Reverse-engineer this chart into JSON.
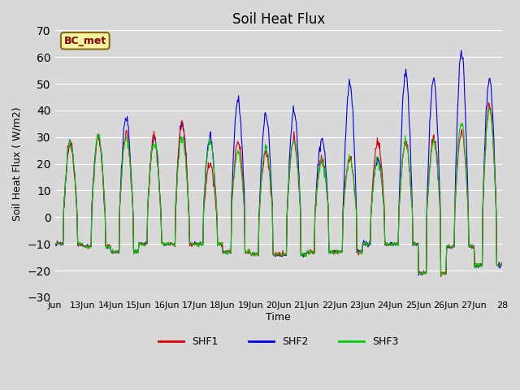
{
  "title": "Soil Heat Flux",
  "ylabel": "Soil Heat Flux ( W/m2)",
  "xlabel": "Time",
  "ylim": [
    -30,
    70
  ],
  "yticks": [
    -30,
    -20,
    -10,
    0,
    10,
    20,
    30,
    40,
    50,
    60,
    70
  ],
  "plot_bg_color": "#d8d8d8",
  "annotation_text": "BC_met",
  "annotation_bg": "#f5f5a0",
  "annotation_border": "#8b6914",
  "line_colors": {
    "SHF1": "#dd0000",
    "SHF2": "#0000ee",
    "SHF3": "#00cc00"
  },
  "legend_labels": [
    "SHF1",
    "SHF2",
    "SHF3"
  ],
  "xtick_labels": [
    "Jun",
    "13Jun",
    "14Jun",
    "15Jun",
    "16Jun",
    "17Jun",
    "18Jun",
    "19Jun",
    "20Jun",
    "21Jun",
    "22Jun",
    "23Jun",
    "24Jun",
    "25Jun",
    "26Jun",
    "27Jun",
    "28"
  ],
  "num_days": 16,
  "points_per_day": 48,
  "day_amplitudes_shf1": [
    28,
    30,
    32,
    30,
    35,
    20,
    28,
    24,
    29,
    22,
    22,
    28,
    28,
    30,
    32,
    42
  ],
  "day_amplitudes_shf2": [
    28,
    30,
    37,
    30,
    35,
    30,
    44,
    38,
    40,
    30,
    50,
    22,
    54,
    52,
    62,
    52
  ],
  "day_amplitudes_shf3": [
    28,
    30,
    30,
    28,
    30,
    28,
    24,
    26,
    29,
    21,
    22,
    22,
    28,
    28,
    35,
    41
  ],
  "night_vals": [
    -10,
    -11,
    -13,
    -10,
    -10,
    -10,
    -13,
    -14,
    -14,
    -13,
    -13,
    -10,
    -10,
    -21,
    -11,
    -18
  ]
}
